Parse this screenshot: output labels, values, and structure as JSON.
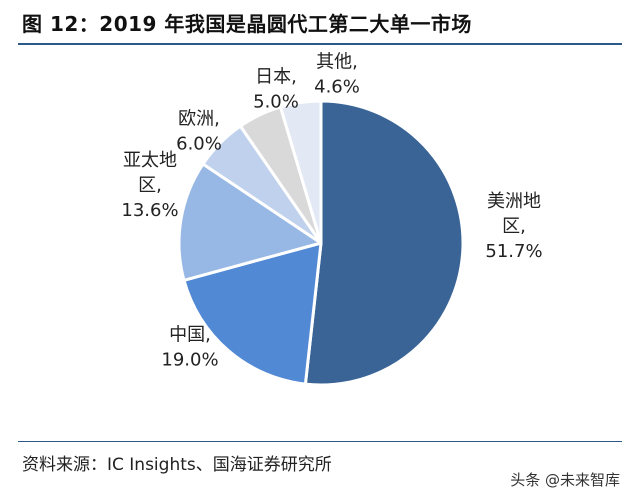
{
  "header": {
    "title": "图 12：2019 年我国是晶圆代工第二大单一市场"
  },
  "footer": {
    "source": "资料来源：IC Insights、国海证券研究所",
    "watermark": "头条 @未来智库"
  },
  "chart_data": {
    "type": "pie",
    "title": "图 12：2019 年我国是晶圆代工第二大单一市场",
    "slices": [
      {
        "name": "美洲地区",
        "value": 51.7,
        "label_lines": [
          "美洲地",
          "区,",
          "51.7%"
        ],
        "color": "#3a6496"
      },
      {
        "name": "中国",
        "value": 19.0,
        "label_lines": [
          "中国,",
          "19.0%"
        ],
        "color": "#5289d4"
      },
      {
        "name": "亚太地区",
        "value": 13.6,
        "label_lines": [
          "亚太地",
          "区,",
          "13.6%"
        ],
        "color": "#97b7e4"
      },
      {
        "name": "欧洲",
        "value": 6.0,
        "label_lines": [
          "欧洲,",
          "6.0%"
        ],
        "color": "#bfd1ec"
      },
      {
        "name": "日本",
        "value": 5.0,
        "label_lines": [
          "日本,",
          "5.0%"
        ],
        "color": "#d9d9d9"
      },
      {
        "name": "其他",
        "value": 4.6,
        "label_lines": [
          "其他,",
          "4.6%"
        ],
        "color": "#e2e9f4"
      }
    ]
  }
}
